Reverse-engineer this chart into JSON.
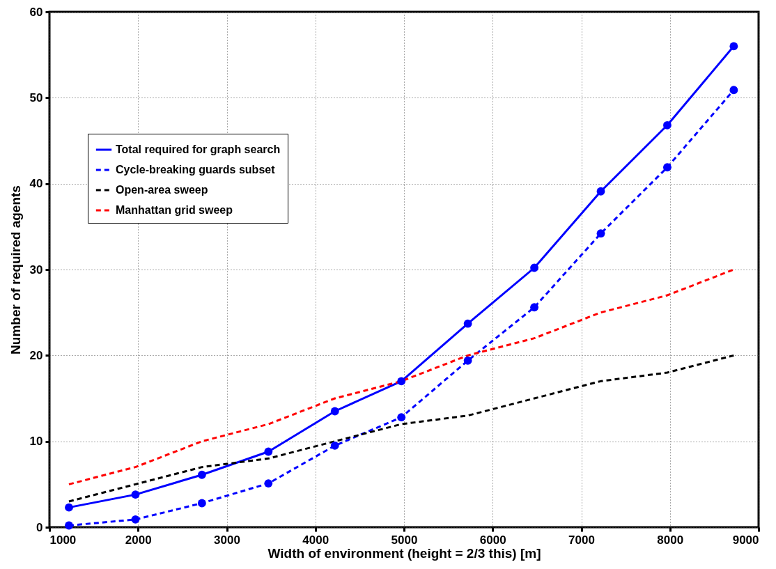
{
  "chart_data": {
    "type": "line",
    "xlabel": "Width of environment (height = 2/3 this) [m]",
    "ylabel": "Number of required agents",
    "x": [
      1220,
      1970,
      2720,
      3470,
      4220,
      4970,
      5720,
      6470,
      7220,
      7970,
      8720
    ],
    "series": [
      {
        "name": "Total required for graph search",
        "color": "#0000ff",
        "line_style": "solid",
        "marker": "circle",
        "values": [
          2.3,
          3.8,
          6.1,
          8.8,
          13.5,
          17.0,
          23.7,
          30.2,
          39.1,
          46.8,
          56.0
        ]
      },
      {
        "name": "Cycle-breaking guards subset",
        "color": "#0000ff",
        "line_style": "dashed",
        "marker": "circle",
        "values": [
          0.2,
          0.9,
          2.8,
          5.1,
          9.5,
          12.8,
          19.4,
          25.6,
          34.2,
          41.9,
          50.9
        ]
      },
      {
        "name": "Open-area sweep",
        "color": "#000000",
        "line_style": "dashed",
        "marker": "none",
        "values": [
          3,
          5,
          7,
          8,
          10,
          12,
          13,
          15,
          17,
          18,
          20
        ]
      },
      {
        "name": "Manhattan grid sweep",
        "color": "#ff0000",
        "line_style": "dashed",
        "marker": "none",
        "values": [
          5,
          7,
          10,
          12,
          15,
          17,
          20,
          22,
          25,
          27,
          30
        ]
      }
    ],
    "xlim": [
      1000,
      9000
    ],
    "xticks": [
      1000,
      2000,
      3000,
      4000,
      5000,
      6000,
      7000,
      8000,
      9000
    ],
    "ylim": [
      0,
      60
    ],
    "yticks": [
      0,
      10,
      20,
      30,
      40,
      50,
      60
    ],
    "grid": true,
    "legend": "top left"
  }
}
